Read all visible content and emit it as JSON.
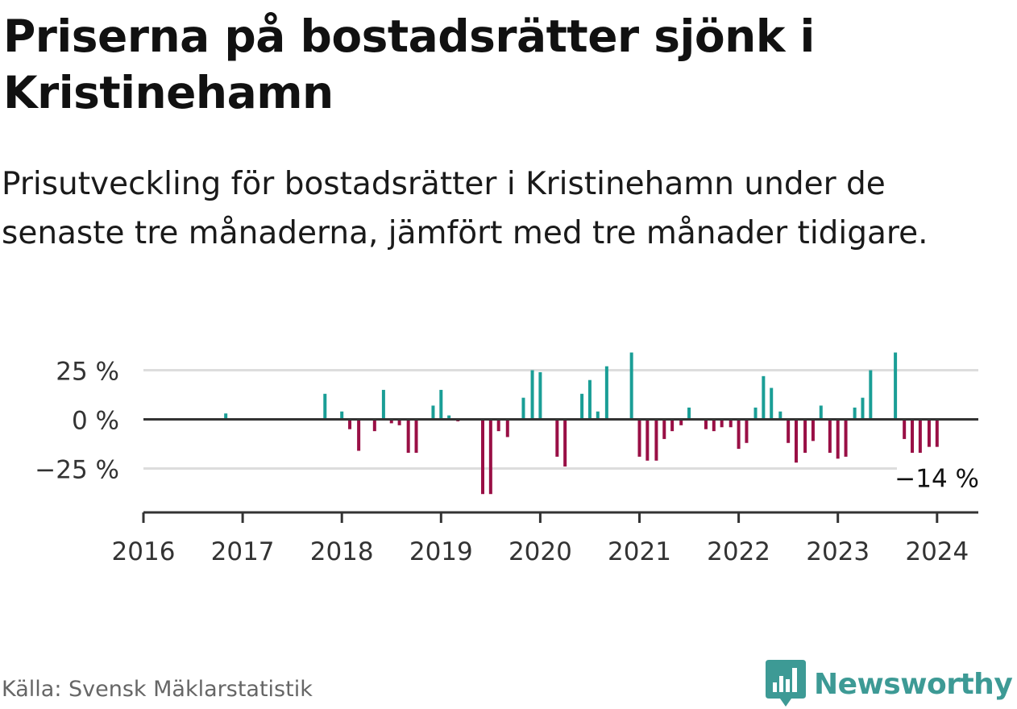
{
  "title": "Priserna på bostadsrätter sjönk i Kristinehamn",
  "subtitle": "Prisutveckling för bostadsrätter i Kristinehamn under de senaste tre månaderna, jämfört med tre månader tidigare.",
  "source": "Källa: Svensk Mäklarstatistik",
  "brand": "Newsworthy",
  "colors": {
    "positive": "#1a9e96",
    "negative": "#990f45",
    "axis": "#333333",
    "grid": "#dddddd",
    "brand": "#3d9a95"
  },
  "chart_data": {
    "type": "bar",
    "title": "Priserna på bostadsrätter sjönk i Kristinehamn",
    "xlabel": "",
    "ylabel": "",
    "x_unit": "year",
    "xlim": [
      2016,
      2024.4
    ],
    "ylim": [
      -40,
      36
    ],
    "y_ticks": [
      {
        "value": 25,
        "label": "25 %"
      },
      {
        "value": 0,
        "label": "0 %"
      },
      {
        "value": -25,
        "label": "−25 %"
      }
    ],
    "x_ticks": [
      {
        "value": 2016,
        "label": "2016"
      },
      {
        "value": 2017,
        "label": "2017"
      },
      {
        "value": 2018,
        "label": "2018"
      },
      {
        "value": 2019,
        "label": "2019"
      },
      {
        "value": 2020,
        "label": "2020"
      },
      {
        "value": 2021,
        "label": "2021"
      },
      {
        "value": 2022,
        "label": "2022"
      },
      {
        "value": 2023,
        "label": "2023"
      },
      {
        "value": 2024,
        "label": "2024"
      }
    ],
    "last_label": "−14 %",
    "series": [
      {
        "name": "Prisutveckling",
        "unit": "%",
        "points": [
          {
            "x": 2016.83,
            "y": 3
          },
          {
            "x": 2017.83,
            "y": 13
          },
          {
            "x": 2018.0,
            "y": 4
          },
          {
            "x": 2018.08,
            "y": -5
          },
          {
            "x": 2018.17,
            "y": -16
          },
          {
            "x": 2018.33,
            "y": -6
          },
          {
            "x": 2018.42,
            "y": 15
          },
          {
            "x": 2018.5,
            "y": -2
          },
          {
            "x": 2018.58,
            "y": -3
          },
          {
            "x": 2018.67,
            "y": -17
          },
          {
            "x": 2018.75,
            "y": -17
          },
          {
            "x": 2018.92,
            "y": 7
          },
          {
            "x": 2019.0,
            "y": 15
          },
          {
            "x": 2019.08,
            "y": 2
          },
          {
            "x": 2019.17,
            "y": -1
          },
          {
            "x": 2019.42,
            "y": -38
          },
          {
            "x": 2019.5,
            "y": -38
          },
          {
            "x": 2019.58,
            "y": -6
          },
          {
            "x": 2019.67,
            "y": -9
          },
          {
            "x": 2019.83,
            "y": 11
          },
          {
            "x": 2019.92,
            "y": 25
          },
          {
            "x": 2020.0,
            "y": 24
          },
          {
            "x": 2020.17,
            "y": -19
          },
          {
            "x": 2020.25,
            "y": -24
          },
          {
            "x": 2020.42,
            "y": 13
          },
          {
            "x": 2020.5,
            "y": 20
          },
          {
            "x": 2020.58,
            "y": 4
          },
          {
            "x": 2020.67,
            "y": 27
          },
          {
            "x": 2020.92,
            "y": 34
          },
          {
            "x": 2021.0,
            "y": -19
          },
          {
            "x": 2021.08,
            "y": -21
          },
          {
            "x": 2021.17,
            "y": -21
          },
          {
            "x": 2021.25,
            "y": -10
          },
          {
            "x": 2021.33,
            "y": -6
          },
          {
            "x": 2021.42,
            "y": -3
          },
          {
            "x": 2021.5,
            "y": 6
          },
          {
            "x": 2021.67,
            "y": -5
          },
          {
            "x": 2021.75,
            "y": -6
          },
          {
            "x": 2021.83,
            "y": -4
          },
          {
            "x": 2021.92,
            "y": -4
          },
          {
            "x": 2022.0,
            "y": -15
          },
          {
            "x": 2022.08,
            "y": -12
          },
          {
            "x": 2022.17,
            "y": 6
          },
          {
            "x": 2022.25,
            "y": 22
          },
          {
            "x": 2022.33,
            "y": 16
          },
          {
            "x": 2022.42,
            "y": 4
          },
          {
            "x": 2022.5,
            "y": -12
          },
          {
            "x": 2022.58,
            "y": -22
          },
          {
            "x": 2022.67,
            "y": -17
          },
          {
            "x": 2022.75,
            "y": -11
          },
          {
            "x": 2022.83,
            "y": 7
          },
          {
            "x": 2022.92,
            "y": -17
          },
          {
            "x": 2023.0,
            "y": -20
          },
          {
            "x": 2023.08,
            "y": -19
          },
          {
            "x": 2023.17,
            "y": 6
          },
          {
            "x": 2023.25,
            "y": 11
          },
          {
            "x": 2023.33,
            "y": 25
          },
          {
            "x": 2023.58,
            "y": 34
          },
          {
            "x": 2023.67,
            "y": -10
          },
          {
            "x": 2023.75,
            "y": -17
          },
          {
            "x": 2023.83,
            "y": -17
          },
          {
            "x": 2023.92,
            "y": -14
          },
          {
            "x": 2024.0,
            "y": -14
          }
        ]
      }
    ]
  }
}
